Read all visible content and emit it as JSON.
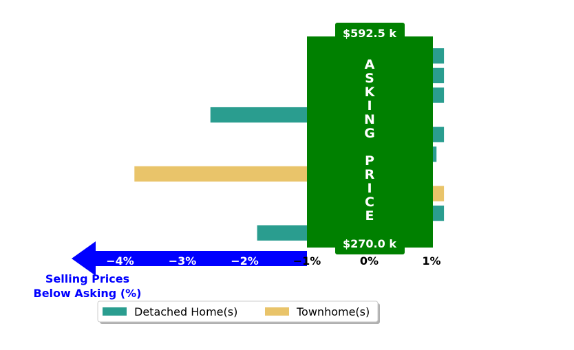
{
  "chart_data": {
    "type": "bar",
    "orientation": "horizontal",
    "x_ticks": [
      "−4%",
      "−3%",
      "−2%",
      "−1%",
      "0%",
      "1%"
    ],
    "x_tick_values": [
      -4,
      -3,
      -2,
      -1,
      0,
      1
    ],
    "xlim": [
      -4.7,
      1.6
    ],
    "ylim": [
      0,
      10
    ],
    "rows": [
      {
        "series": "Detached Home(s)",
        "value": 1.2
      },
      {
        "series": "Detached Home(s)",
        "value": 1.2
      },
      {
        "series": "Detached Home(s)",
        "value": 1.2
      },
      {
        "series": "Detached Home(s)",
        "value": -2.55
      },
      {
        "series": "Detached Home(s)",
        "value": 1.2
      },
      {
        "series": "Detached Home(s)",
        "value": 1.08
      },
      {
        "series": "Townhome(s)",
        "value": -3.77
      },
      {
        "series": "Townhome(s)",
        "value": 1.2
      },
      {
        "series": "Detached Home(s)",
        "value": 1.2
      },
      {
        "series": "Detached Home(s)",
        "value": -1.8
      }
    ],
    "series": [
      {
        "name": "Detached Home(s)",
        "color": "#2a9d8f"
      },
      {
        "name": "Townhome(s)",
        "color": "#e9c46a"
      }
    ],
    "legend": {
      "placement": "bottom-center"
    },
    "asking_box": {
      "top_label": "$592.5 k",
      "bottom_label": "$270.0 k",
      "vertical_text": "ASKING PRICE",
      "color": "#008000"
    },
    "arrow": {
      "color": "#0000ff",
      "caption_line1": "Selling Prices",
      "caption_line2": "Below Asking (%)"
    },
    "grid": false
  }
}
